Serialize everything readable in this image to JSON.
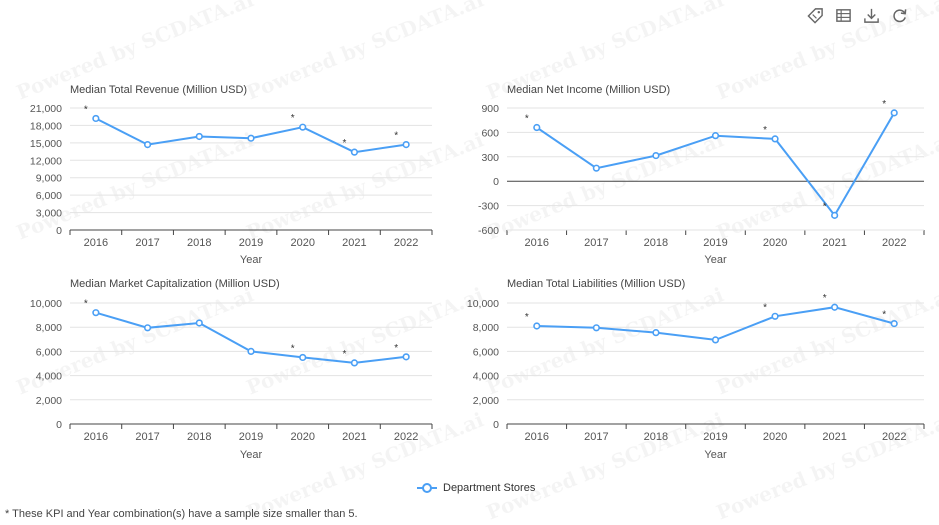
{
  "toolbar": {
    "icons": [
      "tag-icon",
      "table-icon",
      "download-icon",
      "refresh-icon"
    ]
  },
  "watermark": "Powered by SCDATA.ai",
  "legend": {
    "label": "Department Stores",
    "color": "#4a9ff5"
  },
  "footnote": "* These KPI and Year combination(s) have a sample size smaller than 5.",
  "chart_data": [
    {
      "type": "line",
      "title": "Median Total Revenue (Million USD)",
      "xlabel": "Year",
      "ylabel": "",
      "categories": [
        "2016",
        "2017",
        "2018",
        "2019",
        "2020",
        "2021",
        "2022"
      ],
      "series": [
        {
          "name": "Department Stores",
          "values": [
            19200,
            14700,
            16100,
            15800,
            17700,
            13400,
            14700
          ]
        }
      ],
      "asterisk": [
        true,
        false,
        false,
        false,
        true,
        true,
        true
      ],
      "ylim": [
        0,
        21000
      ],
      "yticks": [
        0,
        3000,
        6000,
        9000,
        12000,
        15000,
        18000,
        21000
      ],
      "ytick_labels": [
        "0",
        "3,000",
        "6,000",
        "9,000",
        "12,000",
        "15,000",
        "18,000",
        "21,000"
      ],
      "show_xlabel": true
    },
    {
      "type": "line",
      "title": "Median Net Income (Million USD)",
      "xlabel": "Year",
      "ylabel": "",
      "categories": [
        "2016",
        "2017",
        "2018",
        "2019",
        "2020",
        "2021",
        "2022"
      ],
      "series": [
        {
          "name": "Department Stores",
          "values": [
            660,
            160,
            315,
            560,
            520,
            -420,
            840
          ]
        }
      ],
      "asterisk": [
        true,
        false,
        false,
        false,
        true,
        true,
        true
      ],
      "ylim": [
        -600,
        900
      ],
      "yticks": [
        -600,
        -300,
        0,
        300,
        600,
        900
      ],
      "ytick_labels": [
        "-600",
        "-300",
        "0",
        "300",
        "600",
        "900"
      ],
      "show_xlabel": true
    },
    {
      "type": "line",
      "title": "Median Market Capitalization (Million USD)",
      "xlabel": "Year",
      "ylabel": "",
      "categories": [
        "2016",
        "2017",
        "2018",
        "2019",
        "2020",
        "2021",
        "2022"
      ],
      "series": [
        {
          "name": "Department Stores",
          "values": [
            9200,
            7950,
            8350,
            6000,
            5500,
            5050,
            5550
          ]
        }
      ],
      "asterisk": [
        true,
        false,
        false,
        false,
        true,
        true,
        true
      ],
      "ylim": [
        0,
        10000
      ],
      "yticks": [
        0,
        2000,
        4000,
        6000,
        8000,
        10000
      ],
      "ytick_labels": [
        "0",
        "2,000",
        "4,000",
        "6,000",
        "8,000",
        "10,000"
      ],
      "show_xlabel": true
    },
    {
      "type": "line",
      "title": "Median Total Liabilities (Million USD)",
      "xlabel": "Year",
      "ylabel": "",
      "categories": [
        "2016",
        "2017",
        "2018",
        "2019",
        "2020",
        "2021",
        "2022"
      ],
      "series": [
        {
          "name": "Department Stores",
          "values": [
            8100,
            7950,
            7550,
            6950,
            8900,
            9650,
            8300
          ]
        }
      ],
      "asterisk": [
        true,
        false,
        false,
        false,
        true,
        true,
        true
      ],
      "ylim": [
        0,
        10000
      ],
      "yticks": [
        0,
        2000,
        4000,
        6000,
        8000,
        10000
      ],
      "ytick_labels": [
        "0",
        "2,000",
        "4,000",
        "6,000",
        "8,000",
        "10,000"
      ],
      "show_xlabel": true
    }
  ]
}
